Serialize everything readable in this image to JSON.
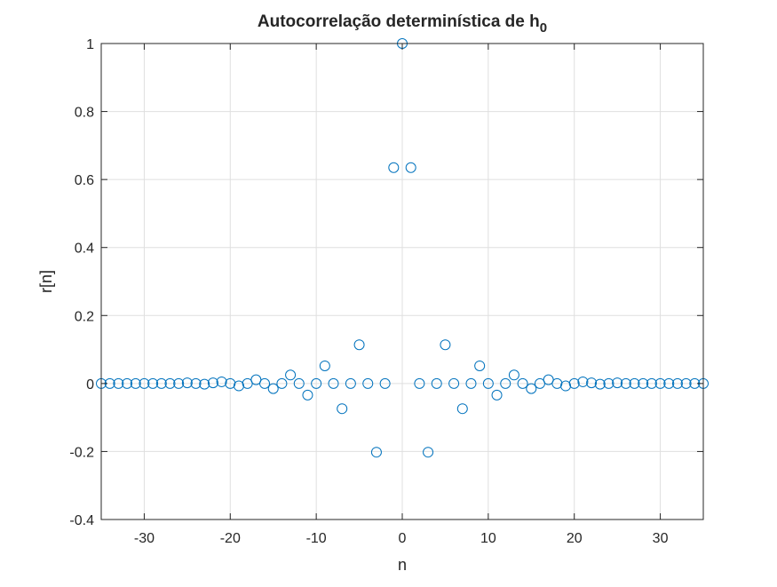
{
  "chart_data": {
    "type": "scatter",
    "title": "Autocorrelação determinística de h",
    "title_subscript": "0",
    "xlabel": "n",
    "ylabel": "r[n]",
    "xlim": [
      -35,
      35
    ],
    "ylim": [
      -0.4,
      1
    ],
    "xticks": [
      -30,
      -20,
      -10,
      0,
      10,
      20,
      30
    ],
    "yticks": [
      -0.4,
      -0.2,
      0,
      0.2,
      0.4,
      0.6,
      0.8,
      1
    ],
    "grid": true,
    "marker": "circle",
    "colors": {
      "marker": "#0072BD",
      "grid": "#dfdfdf",
      "axes": "#262626",
      "background": "#ffffff"
    },
    "series": [
      {
        "x": [
          -35,
          -34,
          -33,
          -32,
          -31,
          -30,
          -29,
          -28,
          -27,
          -26,
          -25,
          -24,
          -23,
          -22,
          -21,
          -20,
          -19,
          -18,
          -17,
          -16,
          -15,
          -14,
          -13,
          -12,
          -11,
          -10,
          -9,
          -8,
          -7,
          -6,
          -5,
          -4,
          -3,
          -2,
          -1,
          0,
          1,
          2,
          3,
          4,
          5,
          6,
          7,
          8,
          9,
          10,
          11,
          12,
          13,
          14,
          15,
          16,
          17,
          18,
          19,
          20,
          21,
          22,
          23,
          24,
          25,
          26,
          27,
          28,
          29,
          30,
          31,
          32,
          33,
          34,
          35
        ],
        "y": [
          0,
          0,
          0,
          0,
          0,
          0,
          0,
          0,
          0,
          0,
          0.002,
          0,
          -0.002,
          0.002,
          0.005,
          0,
          -0.007,
          0,
          0.011,
          0,
          -0.015,
          0,
          0.025,
          0,
          -0.034,
          0,
          0.052,
          0,
          -0.074,
          0,
          0.114,
          0,
          -0.202,
          0,
          0.635,
          1,
          0.635,
          0,
          -0.202,
          0,
          0.114,
          0,
          -0.074,
          0,
          0.052,
          0,
          -0.034,
          0,
          0.025,
          0,
          -0.015,
          0,
          0.011,
          0,
          -0.007,
          0,
          0.005,
          0.002,
          -0.002,
          0,
          0.002,
          0,
          0,
          0,
          0,
          0,
          0,
          0,
          0,
          0,
          0
        ]
      }
    ]
  }
}
